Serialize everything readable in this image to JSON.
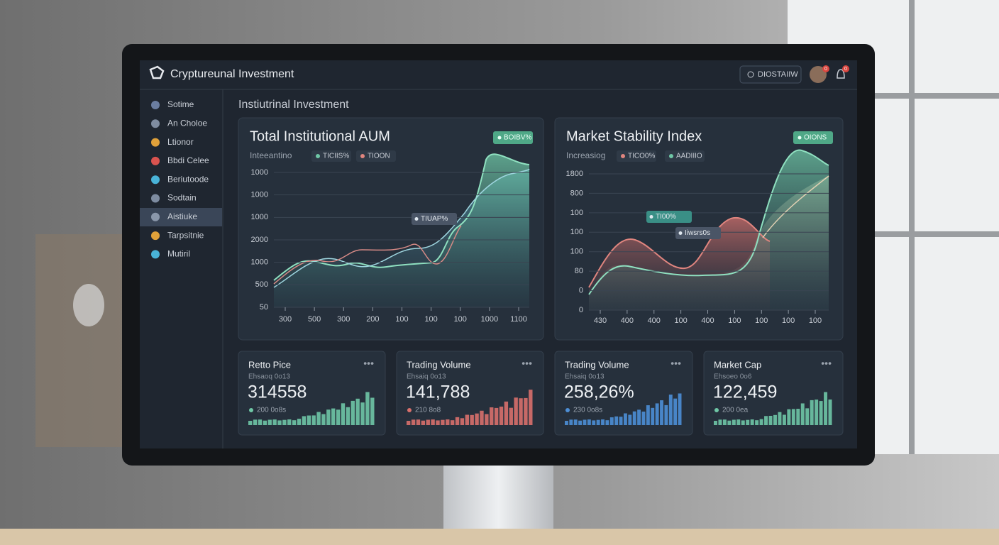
{
  "header": {
    "title": "Cryptureunal Investment",
    "search": "DIOSTAIIW",
    "badges": [
      "0",
      "0"
    ]
  },
  "sidebar": [
    "Sotime",
    "An Choloe",
    "Ltionor",
    "Bbdi Celee",
    "Beriutoode",
    "Sodtain",
    "Aistiuke",
    "Tarpsitnie",
    "Mutiril"
  ],
  "section_title": "Instiutrinal Investment",
  "panels": [
    {
      "title": "Total Institutional AUM",
      "badge": "BOIBV%",
      "subtitle": "Inteeantino",
      "legend": [
        "TICIIS%",
        "TIOON"
      ],
      "tooltips": [
        "TIUAP%"
      ],
      "y_labels": [
        "1000",
        "1000",
        "1000",
        "2000",
        "1000",
        "500",
        "50"
      ],
      "x_labels": [
        "300",
        "500",
        "300",
        "200",
        "100",
        "100",
        "100",
        "1000",
        "1100"
      ]
    },
    {
      "title": "Market Stability Index",
      "badge": "OIONS",
      "subtitle": "Increasiog",
      "legend": [
        "TICO0%",
        "AADIIIO"
      ],
      "tooltips": [
        "TI00%",
        "Iiwsrs0s"
      ],
      "y_labels": [
        "1800",
        "800",
        "100",
        "100",
        "100",
        "80",
        "0",
        "0"
      ],
      "x_labels": [
        "430",
        "400",
        "400",
        "100",
        "400",
        "100",
        "100",
        "100",
        "100"
      ]
    }
  ],
  "cards": [
    {
      "title": "Retto Pice",
      "subtitle": "Ehsaoq 0o13",
      "value": "314558",
      "note": "200 0o8s"
    },
    {
      "title": "Trading Volume",
      "subtitle": "Ehsaiq 0o13",
      "value": "141,788",
      "note": "210 8o8"
    },
    {
      "title": "Trading Volume",
      "subtitle": "Ehsaiq 0o13",
      "value": "258,26%",
      "note": "230 0o8s"
    },
    {
      "title": "Market Cap",
      "subtitle": "Ehsoeo 0o6",
      "value": "122,459",
      "note": "200 0ea"
    }
  ]
}
